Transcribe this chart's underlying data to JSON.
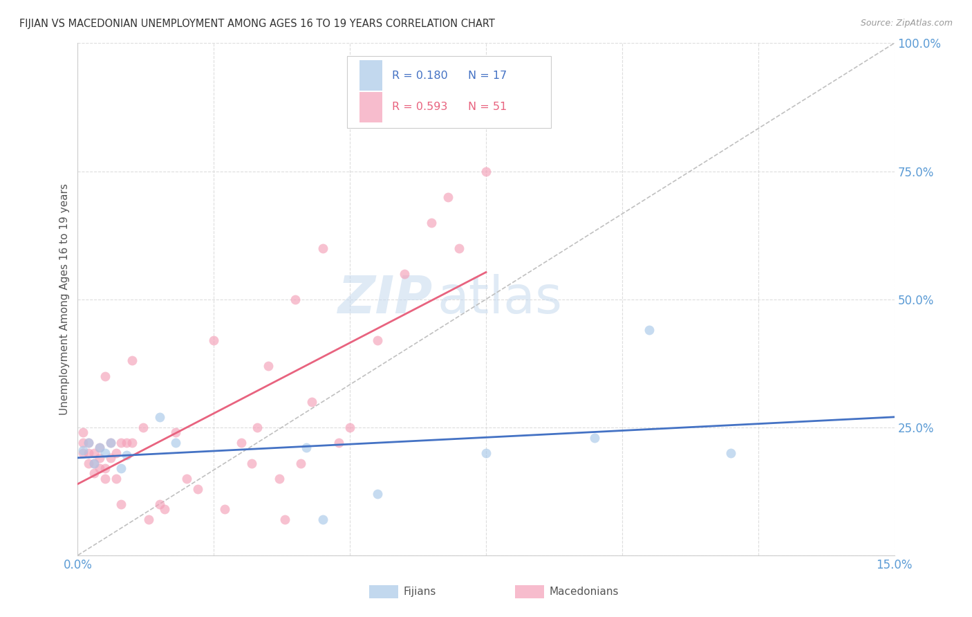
{
  "title": "FIJIAN VS MACEDONIAN UNEMPLOYMENT AMONG AGES 16 TO 19 YEARS CORRELATION CHART",
  "source": "Source: ZipAtlas.com",
  "ylabel": "Unemployment Among Ages 16 to 19 years",
  "xlim": [
    0.0,
    0.15
  ],
  "ylim": [
    0.0,
    1.0
  ],
  "xticks": [
    0.0,
    0.025,
    0.05,
    0.075,
    0.1,
    0.125,
    0.15
  ],
  "xticklabels": [
    "0.0%",
    "",
    "",
    "",
    "",
    "",
    "15.0%"
  ],
  "yticks_right": [
    0.0,
    0.25,
    0.5,
    0.75,
    1.0
  ],
  "yticklabels_right": [
    "",
    "25.0%",
    "50.0%",
    "75.0%",
    "100.0%"
  ],
  "fijian_color": "#a8c8e8",
  "macedonian_color": "#f4a0b8",
  "fijian_R": 0.18,
  "fijian_N": 17,
  "macedonian_R": 0.593,
  "macedonian_N": 51,
  "fijian_x": [
    0.001,
    0.002,
    0.003,
    0.004,
    0.005,
    0.006,
    0.008,
    0.009,
    0.015,
    0.018,
    0.042,
    0.045,
    0.055,
    0.075,
    0.095,
    0.105,
    0.12
  ],
  "fijian_y": [
    0.205,
    0.22,
    0.18,
    0.21,
    0.2,
    0.22,
    0.17,
    0.195,
    0.27,
    0.22,
    0.21,
    0.07,
    0.12,
    0.2,
    0.23,
    0.44,
    0.2
  ],
  "macedonian_x": [
    0.001,
    0.001,
    0.001,
    0.002,
    0.002,
    0.002,
    0.003,
    0.003,
    0.003,
    0.004,
    0.004,
    0.004,
    0.005,
    0.005,
    0.005,
    0.006,
    0.006,
    0.007,
    0.007,
    0.008,
    0.008,
    0.009,
    0.01,
    0.01,
    0.012,
    0.013,
    0.015,
    0.016,
    0.018,
    0.02,
    0.022,
    0.025,
    0.027,
    0.03,
    0.032,
    0.033,
    0.035,
    0.037,
    0.038,
    0.04,
    0.041,
    0.043,
    0.045,
    0.048,
    0.05,
    0.055,
    0.06,
    0.065,
    0.068,
    0.07,
    0.075
  ],
  "macedonian_y": [
    0.2,
    0.22,
    0.24,
    0.18,
    0.2,
    0.22,
    0.16,
    0.18,
    0.2,
    0.17,
    0.19,
    0.21,
    0.15,
    0.17,
    0.35,
    0.19,
    0.22,
    0.15,
    0.2,
    0.1,
    0.22,
    0.22,
    0.38,
    0.22,
    0.25,
    0.07,
    0.1,
    0.09,
    0.24,
    0.15,
    0.13,
    0.42,
    0.09,
    0.22,
    0.18,
    0.25,
    0.37,
    0.15,
    0.07,
    0.5,
    0.18,
    0.3,
    0.6,
    0.22,
    0.25,
    0.42,
    0.55,
    0.65,
    0.7,
    0.6,
    0.75
  ],
  "watermark_zip": "ZIP",
  "watermark_atlas": "atlas",
  "background_color": "#ffffff",
  "grid_color": "#dddddd",
  "legend_fijian_label": "Fijians",
  "legend_macedonian_label": "Macedonians",
  "title_color": "#333333",
  "axis_label_color": "#555555",
  "tick_color": "#5b9bd5",
  "fijian_line_color": "#4472c4",
  "macedonian_line_color": "#e8637f",
  "ref_line_color": "#c0c0c0"
}
